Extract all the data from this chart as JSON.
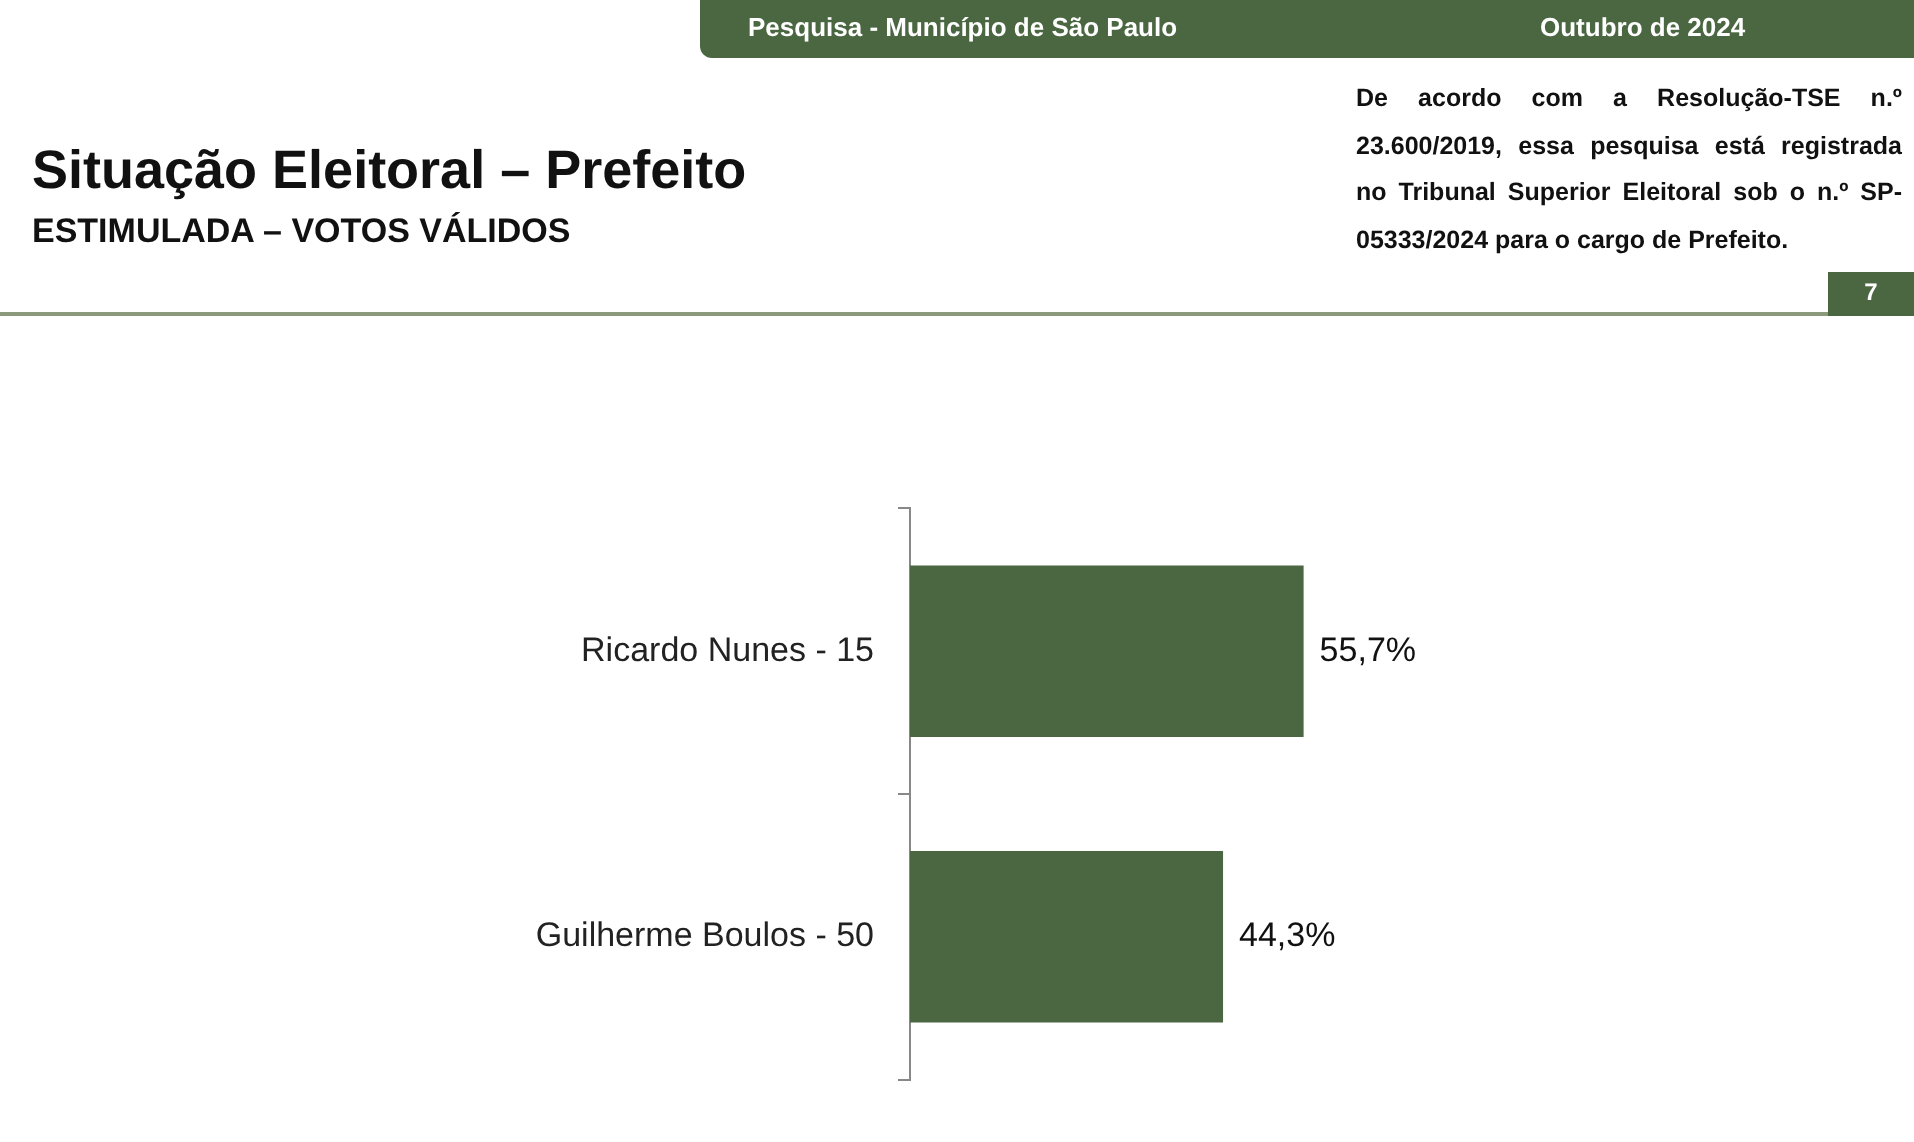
{
  "chart_data": {
    "type": "bar",
    "orientation": "horizontal",
    "title": "Situação Eleitoral – Prefeito",
    "subtitle": "ESTIMULADA – VOTOS VÁLIDOS",
    "categories": [
      "Ricardo Nunes - 15",
      "Guilherme Boulos - 50"
    ],
    "values": [
      55.7,
      44.3
    ],
    "value_labels": [
      "55,7%",
      "44,3%"
    ],
    "color": "#4a6741",
    "legend": false,
    "grid": false,
    "annotations": [
      "Pesquisa - Município de São Paulo",
      "Outubro de 2024",
      "De acordo com a Resolução-TSE n.º 23.600/2019, essa pesquisa está registrada no Tribunal Superior Eleitoral sob o n.º SP-05333/2024 para o cargo de Prefeito.",
      "7"
    ]
  }
}
